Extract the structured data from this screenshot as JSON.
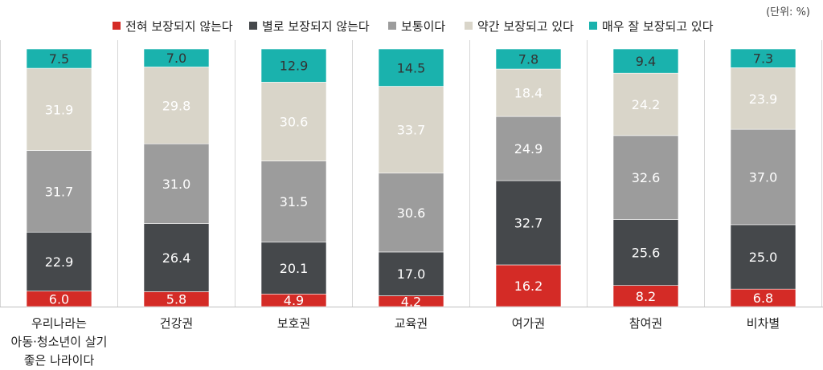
{
  "unit_label": "(단위: %)",
  "colors": {
    "전혀 보장되지 않는다": "#d42b26",
    "별로 보장되지 않는다": "#45484b",
    "보통이다": "#9c9c9c",
    "약간 보장되고 있다": "#d9d5c9",
    "매우 잘 보장되고 있다": "#1ab2ad"
  },
  "chart_data": {
    "type": "bar",
    "stacked": true,
    "categories": [
      [
        "우리나라는",
        "아동·청소년이 살기",
        "좋은 나라이다"
      ],
      [
        "건강권"
      ],
      [
        "보호권"
      ],
      [
        "교육권"
      ],
      [
        "여가권"
      ],
      [
        "참여권"
      ],
      [
        "비차별"
      ]
    ],
    "series": [
      {
        "name": "전혀 보장되지 않는다",
        "values": [
          6.0,
          5.8,
          4.9,
          4.2,
          16.2,
          8.2,
          6.8
        ]
      },
      {
        "name": "별로 보장되지 않는다",
        "values": [
          22.9,
          26.4,
          20.1,
          17.0,
          32.7,
          25.6,
          25.0
        ]
      },
      {
        "name": "보통이다",
        "values": [
          31.7,
          31.0,
          31.5,
          30.6,
          24.9,
          32.6,
          37.0
        ]
      },
      {
        "name": "약간 보장되고 있다",
        "values": [
          31.9,
          29.8,
          30.6,
          33.7,
          18.4,
          24.2,
          23.9
        ]
      },
      {
        "name": "매우 잘 보장되고 있다",
        "values": [
          7.5,
          7.0,
          12.9,
          14.5,
          7.8,
          9.4,
          7.3
        ]
      }
    ],
    "value_labels": [
      [
        "6.0",
        "5.8",
        "4.9",
        "4.2",
        "16.2",
        "8.2",
        "6.8"
      ],
      [
        "22.9",
        "26.4",
        "20.1",
        "17.0",
        "32.7",
        "25.6",
        "25.0"
      ],
      [
        "31.7",
        "31.0",
        "31.5",
        "30.6",
        "24.9",
        "32.6",
        "37.0"
      ],
      [
        "31.9",
        "29.8",
        "30.6",
        "33.7",
        "18.4",
        "24.2",
        "23.9"
      ],
      [
        "7.5",
        "7.0",
        "12.9",
        "14.5",
        "7.8",
        "9.4",
        "7.3"
      ]
    ],
    "ylim": [
      0,
      100
    ],
    "legend_position": "top",
    "grid": false
  }
}
